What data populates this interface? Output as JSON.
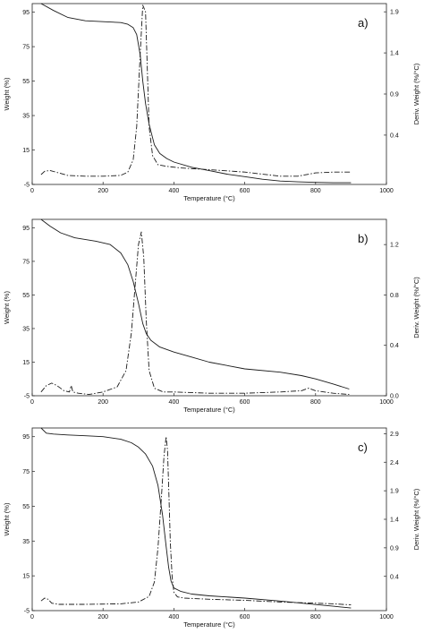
{
  "chart_data": [
    {
      "type": "line",
      "panel_label": "a)",
      "xlabel": "Temperature (°C)",
      "ylabel": "Weight (%)",
      "y2label": "Deriv. Weight (%/°C)",
      "xlim": [
        0,
        1000
      ],
      "ylim": [
        -5,
        100
      ],
      "y2lim": [
        -0.2,
        2.0
      ],
      "xticks": [
        "0",
        "200",
        "400",
        "600",
        "800",
        "1000"
      ],
      "yticks": [
        "-5",
        "15",
        "35",
        "55",
        "75",
        "95"
      ],
      "y2ticks": [
        "0.4",
        "0.9",
        "1.4",
        "1.9"
      ],
      "y2tick_values": [
        0.4,
        0.9,
        1.4,
        1.9
      ],
      "series": [
        {
          "style": "solid",
          "axis": "left",
          "x": [
            25,
            60,
            100,
            150,
            200,
            250,
            270,
            285,
            295,
            305,
            312,
            320,
            330,
            345,
            360,
            380,
            400,
            450,
            500,
            550,
            600,
            650,
            700,
            750,
            800,
            850,
            900
          ],
          "y": [
            100,
            96,
            92,
            90,
            89.5,
            89,
            88,
            86,
            82,
            70,
            55,
            42,
            30,
            18,
            13,
            10,
            8,
            5,
            3,
            1,
            -0.5,
            -2,
            -3,
            -3.5,
            -3.8,
            -4,
            -4
          ]
        },
        {
          "style": "dashdot",
          "axis": "right",
          "x": [
            25,
            35,
            50,
            75,
            100,
            150,
            200,
            250,
            270,
            285,
            295,
            305,
            312,
            320,
            325,
            330,
            340,
            355,
            380,
            420,
            500,
            600,
            700,
            750,
            800,
            850,
            900
          ],
          "y": [
            -0.08,
            -0.04,
            -0.03,
            -0.06,
            -0.09,
            -0.1,
            -0.1,
            -0.09,
            -0.05,
            0.1,
            0.5,
            1.4,
            1.98,
            1.9,
            1.2,
            0.5,
            0.15,
            0.04,
            0.02,
            0.0,
            -0.02,
            -0.05,
            -0.1,
            -0.1,
            -0.06,
            -0.05,
            -0.05
          ]
        }
      ]
    },
    {
      "type": "line",
      "panel_label": "b)",
      "xlabel": "Temperature (°C)",
      "ylabel": "Weight (%)",
      "y2label": "Deriv. Weight (%/°C)",
      "xlim": [
        0,
        1000
      ],
      "ylim": [
        -5,
        100
      ],
      "y2lim": [
        0.0,
        1.4
      ],
      "xticks": [
        "0",
        "200",
        "400",
        "600",
        "800",
        "1000"
      ],
      "yticks": [
        "-5",
        "15",
        "35",
        "55",
        "75",
        "95"
      ],
      "y2ticks": [
        "0.0",
        "0.4",
        "0.8",
        "1.2"
      ],
      "y2tick_values": [
        0.0,
        0.4,
        0.8,
        1.2
      ],
      "series": [
        {
          "style": "solid",
          "axis": "left",
          "x": [
            25,
            50,
            80,
            120,
            180,
            220,
            250,
            270,
            285,
            300,
            312,
            322,
            335,
            360,
            400,
            450,
            500,
            600,
            700,
            760,
            800,
            850,
            895
          ],
          "y": [
            100,
            96,
            92,
            89,
            87,
            85,
            80,
            73,
            63,
            50,
            38,
            32,
            28,
            24,
            21,
            18,
            15,
            11,
            9,
            7,
            5,
            2,
            -1
          ]
        },
        {
          "style": "dashdot",
          "axis": "right",
          "x": [
            25,
            40,
            55,
            70,
            90,
            105,
            110,
            115,
            130,
            160,
            200,
            240,
            265,
            280,
            290,
            300,
            308,
            315,
            322,
            330,
            345,
            370,
            400,
            500,
            600,
            700,
            760,
            780,
            800,
            850,
            895
          ],
          "y": [
            0.03,
            0.08,
            0.1,
            0.08,
            0.04,
            0.03,
            0.08,
            0.03,
            0.02,
            0.01,
            0.03,
            0.07,
            0.2,
            0.5,
            0.85,
            1.2,
            1.3,
            1.1,
            0.6,
            0.2,
            0.06,
            0.03,
            0.03,
            0.02,
            0.02,
            0.03,
            0.04,
            0.06,
            0.04,
            0.02,
            0.01
          ]
        }
      ]
    },
    {
      "type": "line",
      "panel_label": "c)",
      "xlabel": "Temperature (°C)",
      "ylabel": "Weight (%)",
      "y2label": "Deriv. Weight (%/°C)",
      "xlim": [
        0,
        1000
      ],
      "ylim": [
        -5,
        100
      ],
      "y2lim": [
        -0.2,
        3.0
      ],
      "xticks": [
        "0",
        "200",
        "400",
        "600",
        "800",
        "1000"
      ],
      "yticks": [
        "-5",
        "15",
        "35",
        "55",
        "75",
        "95"
      ],
      "y2ticks": [
        "0.4",
        "0.9",
        "1.4",
        "1.9",
        "2.4",
        "2.9"
      ],
      "y2tick_values": [
        0.4,
        0.9,
        1.4,
        1.9,
        2.4,
        2.9
      ],
      "series": [
        {
          "style": "solid",
          "axis": "left",
          "x": [
            25,
            40,
            60,
            100,
            150,
            200,
            250,
            280,
            300,
            320,
            340,
            355,
            368,
            378,
            385,
            392,
            400,
            420,
            450,
            500,
            600,
            700,
            800,
            850,
            900
          ],
          "y": [
            100,
            97,
            96.5,
            96,
            95.5,
            95,
            93.5,
            91.5,
            89,
            85,
            78,
            67,
            50,
            32,
            20,
            12,
            8,
            6,
            4.5,
            3.5,
            2.2,
            0.5,
            -1.5,
            -2.5,
            -3.5
          ]
        },
        {
          "style": "dashdot",
          "axis": "right",
          "x": [
            25,
            35,
            45,
            55,
            75,
            150,
            250,
            300,
            330,
            345,
            355,
            365,
            372,
            378,
            382,
            386,
            390,
            395,
            400,
            410,
            430,
            500,
            600,
            700,
            800,
            850,
            900
          ],
          "y": [
            -0.03,
            0.02,
            0.0,
            -0.07,
            -0.09,
            -0.09,
            -0.08,
            -0.05,
            0.05,
            0.3,
            0.9,
            1.8,
            2.5,
            2.85,
            2.6,
            1.8,
            1.0,
            0.4,
            0.12,
            0.04,
            0.02,
            0.0,
            -0.02,
            -0.05,
            -0.07,
            -0.08,
            -0.1
          ]
        }
      ]
    }
  ]
}
